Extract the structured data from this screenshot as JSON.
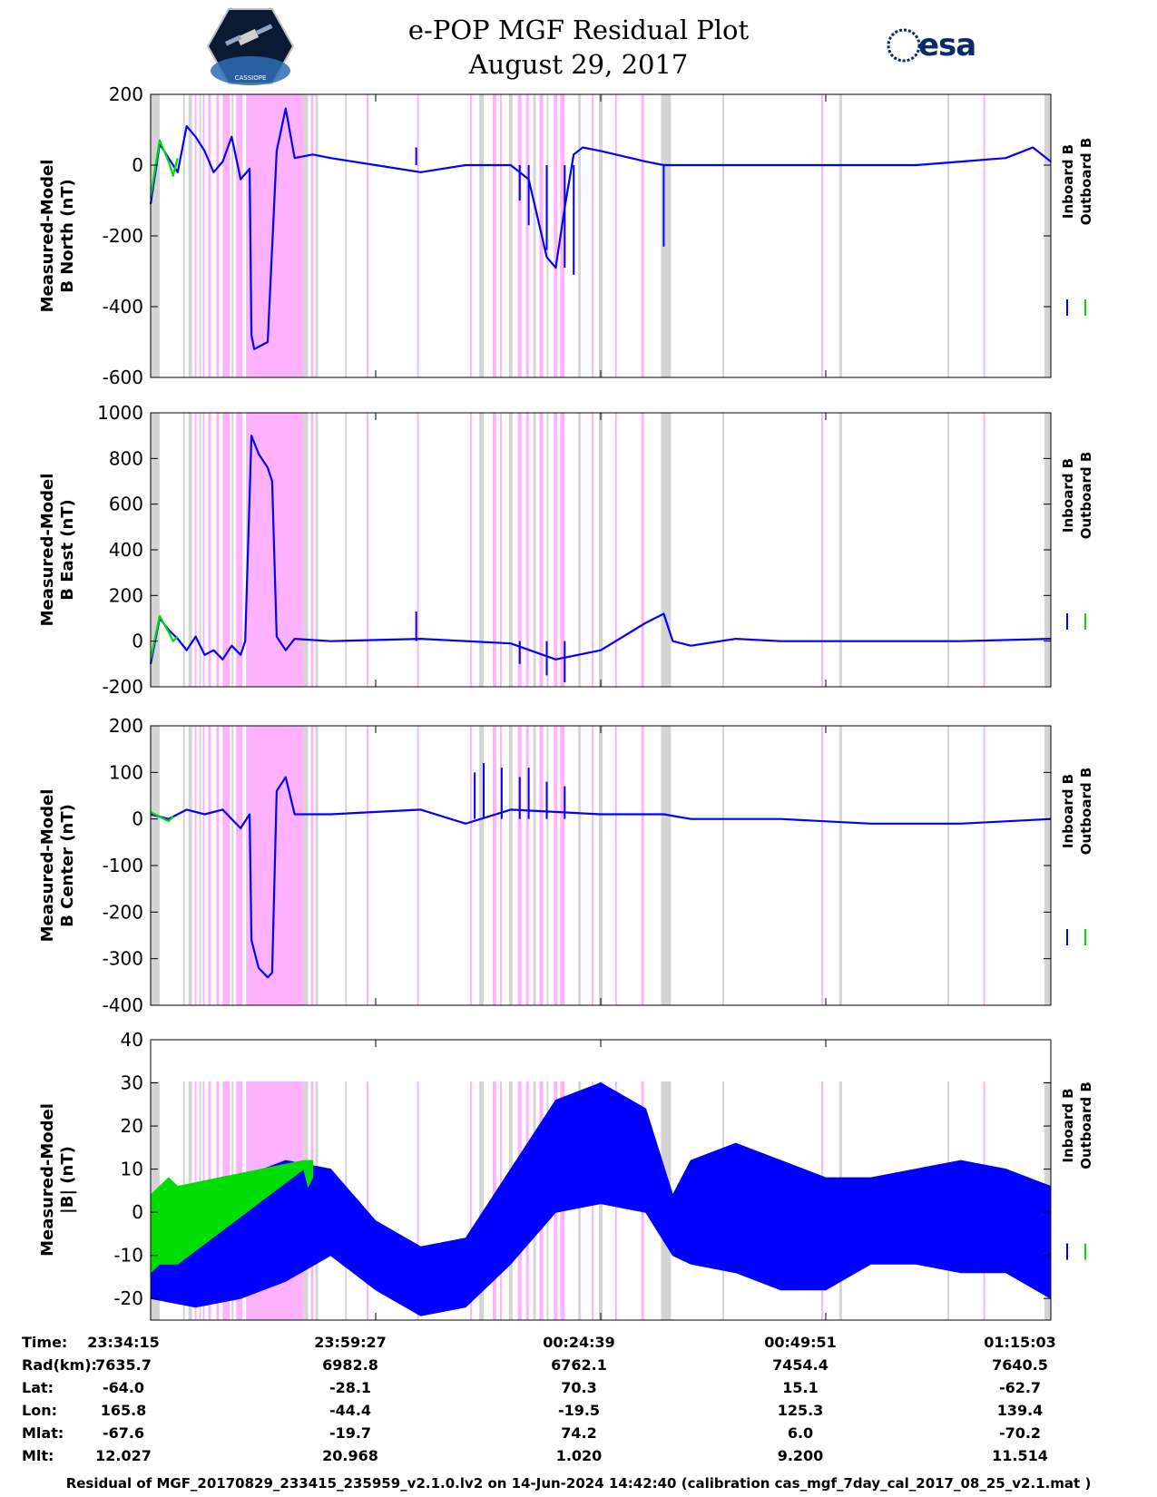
{
  "header": {
    "title_line1": "e-POP MGF Residual Plot",
    "title_line2": "August 29, 2017",
    "logo_left_text": "CASSIOPE",
    "logo_right_text": "esa"
  },
  "colors": {
    "inboard": "#0000ff",
    "outboard": "#00dd00",
    "magenta_band": "#ffb3ff",
    "gray_band": "#d4d4d4"
  },
  "legend": {
    "inboard": "Inboard B",
    "outboard": "Outboard B"
  },
  "chart_data": [
    {
      "type": "line",
      "ylabel_line1": "Measured-Model",
      "ylabel_line2": "B North (nT)",
      "ylim": [
        -600,
        200
      ],
      "yticks": [
        200,
        0,
        -200,
        -400,
        -600
      ],
      "series": [
        {
          "name": "Inboard B",
          "x": [
            0.0,
            0.01,
            0.02,
            0.03,
            0.04,
            0.05,
            0.06,
            0.07,
            0.08,
            0.09,
            0.1,
            0.11,
            0.112,
            0.115,
            0.13,
            0.14,
            0.15,
            0.16,
            0.18,
            0.2,
            0.25,
            0.3,
            0.35,
            0.4,
            0.42,
            0.43,
            0.44,
            0.45,
            0.46,
            0.47,
            0.48,
            0.5,
            0.55,
            0.57,
            0.58,
            0.59,
            0.6,
            0.65,
            0.7,
            0.75,
            0.8,
            0.85,
            0.9,
            0.95,
            0.98,
            1.0
          ],
          "values": [
            -110,
            60,
            20,
            -20,
            110,
            80,
            40,
            -20,
            10,
            80,
            -40,
            -10,
            -480,
            -520,
            -500,
            40,
            160,
            20,
            30,
            20,
            0,
            -20,
            0,
            0,
            -40,
            -150,
            -260,
            -290,
            -120,
            30,
            50,
            40,
            10,
            0,
            0,
            0,
            0,
            0,
            0,
            0,
            0,
            0,
            10,
            20,
            50,
            10
          ]
        },
        {
          "name": "Outboard B",
          "x": [
            0.0,
            0.01,
            0.02,
            0.025,
            0.03
          ],
          "values": [
            -90,
            70,
            10,
            -30,
            20
          ]
        }
      ],
      "spikes": [
        [
          0.295,
          50
        ],
        [
          0.41,
          -100
        ],
        [
          0.42,
          -170
        ],
        [
          0.44,
          -240
        ],
        [
          0.46,
          -290
        ],
        [
          0.47,
          -310
        ],
        [
          0.57,
          -230
        ]
      ]
    },
    {
      "type": "line",
      "ylabel_line1": "Measured-Model",
      "ylabel_line2": "B East (nT)",
      "ylim": [
        -200,
        1000
      ],
      "yticks": [
        1000,
        800,
        600,
        400,
        200,
        0,
        -200
      ],
      "series": [
        {
          "name": "Inboard B",
          "x": [
            0.0,
            0.01,
            0.02,
            0.03,
            0.04,
            0.05,
            0.06,
            0.07,
            0.08,
            0.09,
            0.1,
            0.105,
            0.112,
            0.12,
            0.13,
            0.135,
            0.14,
            0.15,
            0.16,
            0.2,
            0.3,
            0.4,
            0.45,
            0.5,
            0.55,
            0.57,
            0.58,
            0.6,
            0.65,
            0.7,
            0.8,
            0.9,
            1.0
          ],
          "values": [
            -100,
            100,
            50,
            10,
            -40,
            20,
            -60,
            -40,
            -80,
            -20,
            -60,
            0,
            900,
            820,
            760,
            700,
            20,
            -40,
            10,
            0,
            10,
            -10,
            -80,
            -40,
            80,
            120,
            0,
            -20,
            10,
            0,
            0,
            0,
            10
          ]
        },
        {
          "name": "Outboard B",
          "x": [
            0.0,
            0.01,
            0.02,
            0.025,
            0.03
          ],
          "values": [
            -80,
            110,
            40,
            0,
            20
          ]
        }
      ],
      "spikes": [
        [
          0.295,
          130
        ],
        [
          0.41,
          -100
        ],
        [
          0.44,
          -150
        ],
        [
          0.46,
          -180
        ]
      ]
    },
    {
      "type": "line",
      "ylabel_line1": "Measured-Model",
      "ylabel_line2": "B Center (nT)",
      "ylim": [
        -400,
        200
      ],
      "yticks": [
        200,
        100,
        0,
        -100,
        -200,
        -300,
        -400
      ],
      "series": [
        {
          "name": "Inboard B",
          "x": [
            0.0,
            0.02,
            0.04,
            0.06,
            0.08,
            0.09,
            0.1,
            0.11,
            0.112,
            0.12,
            0.13,
            0.135,
            0.14,
            0.15,
            0.16,
            0.2,
            0.3,
            0.35,
            0.4,
            0.5,
            0.57,
            0.6,
            0.7,
            0.8,
            0.9,
            1.0
          ],
          "values": [
            10,
            0,
            20,
            10,
            20,
            0,
            -20,
            10,
            -260,
            -320,
            -340,
            -330,
            60,
            90,
            10,
            10,
            20,
            -10,
            20,
            10,
            10,
            0,
            0,
            -10,
            -10,
            0
          ]
        },
        {
          "name": "Outboard B",
          "x": [
            0.0,
            0.01,
            0.02,
            0.025
          ],
          "values": [
            15,
            5,
            -5,
            5
          ]
        }
      ],
      "spikes": [
        [
          0.36,
          100
        ],
        [
          0.37,
          120
        ],
        [
          0.39,
          110
        ],
        [
          0.41,
          90
        ],
        [
          0.42,
          110
        ],
        [
          0.44,
          80
        ],
        [
          0.46,
          70
        ]
      ]
    },
    {
      "type": "area",
      "ylabel_line1": "Measured-Model",
      "ylabel_line2": "|B| (nT)",
      "ylim": [
        -25,
        40
      ],
      "yticks": [
        40,
        30,
        20,
        10,
        0,
        -10,
        -20
      ],
      "series": [
        {
          "name": "Inboard B",
          "x": [
            0.0,
            0.05,
            0.1,
            0.15,
            0.2,
            0.25,
            0.3,
            0.35,
            0.4,
            0.45,
            0.5,
            0.55,
            0.58,
            0.6,
            0.65,
            0.7,
            0.75,
            0.8,
            0.85,
            0.9,
            0.95,
            1.0
          ],
          "upper": [
            4,
            4,
            8,
            12,
            10,
            -2,
            -8,
            -6,
            10,
            26,
            30,
            24,
            4,
            12,
            16,
            12,
            8,
            8,
            10,
            12,
            10,
            6
          ],
          "lower": [
            -20,
            -22,
            -20,
            -16,
            -10,
            -18,
            -24,
            -22,
            -12,
            0,
            2,
            0,
            -10,
            -12,
            -14,
            -18,
            -18,
            -12,
            -12,
            -14,
            -14,
            -20
          ]
        },
        {
          "name": "Outboard B",
          "x": [
            0.0,
            0.01,
            0.02,
            0.03,
            0.17,
            0.175,
            0.18
          ],
          "upper": [
            4,
            6,
            8,
            6,
            12,
            12,
            12
          ],
          "lower": [
            -14,
            -12,
            -12,
            -12,
            10,
            6,
            8
          ]
        }
      ],
      "spikes": []
    }
  ],
  "bands": {
    "gray": [
      [
        0.0,
        0.01
      ],
      [
        0.036,
        0.038
      ],
      [
        0.042,
        0.046
      ],
      [
        0.054,
        0.056
      ],
      [
        0.09,
        0.092
      ],
      [
        0.17,
        0.175
      ],
      [
        0.183,
        0.186
      ],
      [
        0.216,
        0.218
      ],
      [
        0.365,
        0.37
      ],
      [
        0.398,
        0.402
      ],
      [
        0.425,
        0.428
      ],
      [
        0.44,
        0.442
      ],
      [
        0.475,
        0.478
      ],
      [
        0.498,
        0.502
      ],
      [
        0.567,
        0.578
      ],
      [
        0.635,
        0.637
      ],
      [
        0.765,
        0.768
      ],
      [
        0.885,
        0.887
      ],
      [
        0.993,
        1.0
      ]
    ],
    "magenta": [
      [
        0.049,
        0.051
      ],
      [
        0.058,
        0.06
      ],
      [
        0.064,
        0.067
      ],
      [
        0.073,
        0.076
      ],
      [
        0.08,
        0.088
      ],
      [
        0.095,
        0.102
      ],
      [
        0.106,
        0.17
      ],
      [
        0.178,
        0.181
      ],
      [
        0.24,
        0.242
      ],
      [
        0.296,
        0.298
      ],
      [
        0.355,
        0.357
      ],
      [
        0.38,
        0.384
      ],
      [
        0.388,
        0.39
      ],
      [
        0.408,
        0.412
      ],
      [
        0.417,
        0.42
      ],
      [
        0.432,
        0.436
      ],
      [
        0.448,
        0.452
      ],
      [
        0.455,
        0.46
      ],
      [
        0.49,
        0.492
      ],
      [
        0.516,
        0.518
      ],
      [
        0.545,
        0.548
      ],
      [
        0.745,
        0.747
      ],
      [
        0.925,
        0.927
      ]
    ]
  },
  "time_axis": {
    "rows": [
      {
        "label": "Time:",
        "values": [
          "23:34:15",
          "23:59:27",
          "00:24:39",
          "00:49:51",
          "01:15:03"
        ]
      },
      {
        "label": "Rad(km):",
        "values": [
          "7635.7",
          "6982.8",
          "6762.1",
          "7454.4",
          "7640.5"
        ]
      },
      {
        "label": "Lat:",
        "values": [
          "-64.0",
          "-28.1",
          "70.3",
          "15.1",
          "-62.7"
        ]
      },
      {
        "label": "Lon:",
        "values": [
          "165.8",
          "-44.4",
          "-19.5",
          "125.3",
          "139.4"
        ]
      },
      {
        "label": "Mlat:",
        "values": [
          "-67.6",
          "-19.7",
          "74.2",
          "6.0",
          "-70.2"
        ]
      },
      {
        "label": "Mlt:",
        "values": [
          "12.027",
          "20.968",
          "1.020",
          "9.200",
          "11.514"
        ]
      }
    ]
  },
  "footer": {
    "text": "Residual of MGF_20170829_233415_235959_v2.1.0.lv2 on 14-Jun-2024 14:42:40 (calibration cas_mgf_7day_cal_2017_08_25_v2.1.mat )"
  }
}
